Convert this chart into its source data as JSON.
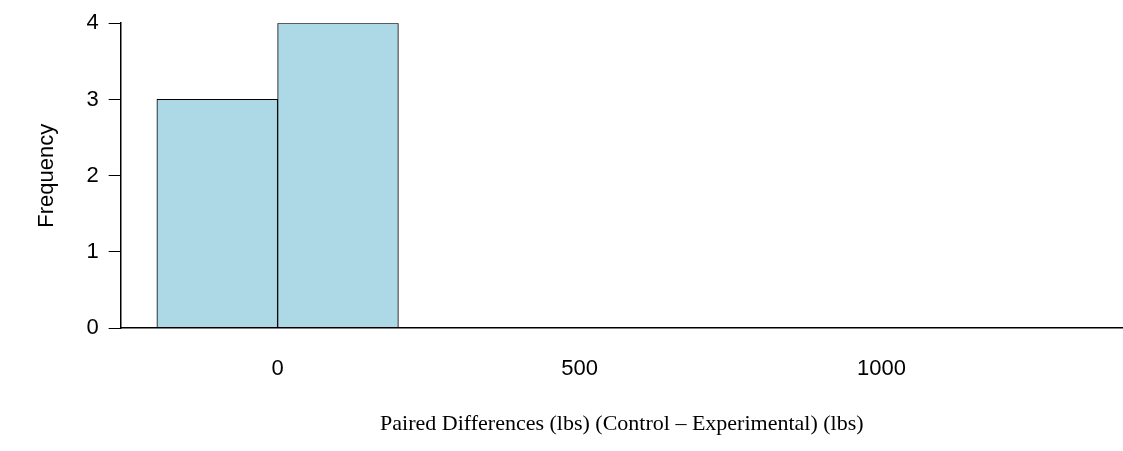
{
  "chart_data": {
    "type": "histogram",
    "xlabel": "Paired Differences (lbs) (Control – Experimental) (lbs)",
    "ylabel": "Frequency",
    "bins": [
      -200,
      0,
      200,
      400,
      600,
      800,
      1000,
      1200,
      1400
    ],
    "values": [
      3,
      4,
      0,
      0,
      0,
      0,
      0,
      0
    ],
    "color": "#add8e6",
    "xlim": [
      -260,
      1400
    ],
    "xticks": [
      0,
      500,
      1000
    ],
    "ylim": [
      0,
      4
    ],
    "yticks": [
      0,
      1,
      2,
      3,
      4
    ],
    "grid": false,
    "legend": false
  }
}
